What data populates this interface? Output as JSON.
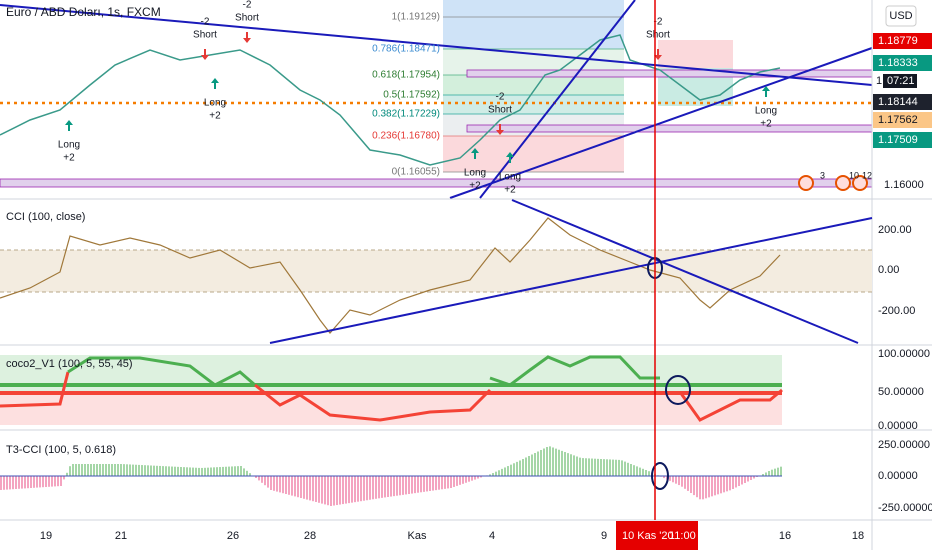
{
  "header": {
    "title": "Euro / ABD Doları, 1s, FXCM",
    "currency": "USD"
  },
  "price_axis": {
    "labels": [
      "1.18779",
      "1.18333",
      "07:21",
      "1.18144",
      "1.17562",
      "1.17509",
      "1.16000"
    ],
    "countdown_prefix": "1"
  },
  "fibonacci": [
    "1(1.19129)",
    "0.786(1.18471)",
    "0.618(1.17954)",
    "0.5(1.17592)",
    "0.382(1.17229)",
    "0.236(1.16780)",
    "0(1.16055)"
  ],
  "signals": [
    {
      "top": "-2",
      "bottom": "Short"
    },
    {
      "top": "-2",
      "bottom": "Short"
    },
    {
      "top": "Long",
      "bottom": "+2"
    },
    {
      "top": "Long",
      "bottom": "+2"
    },
    {
      "top": "-2",
      "bottom": "Short"
    },
    {
      "top": "Long",
      "bottom": "+2"
    },
    {
      "top": "Long",
      "bottom": "+2"
    },
    {
      "top": "-2",
      "bottom": "Short"
    },
    {
      "top": "Long",
      "bottom": "+2"
    }
  ],
  "event_labels": [
    "3",
    "10",
    "12"
  ],
  "panes": [
    {
      "title": "CCI (100, close)",
      "axis": [
        "200.00",
        "0.00",
        "-200.00"
      ]
    },
    {
      "title": "coco2_V1 (100, 5, 55, 45)",
      "axis": [
        "100.00000",
        "50.00000",
        "0.00000"
      ]
    },
    {
      "title": "T3-CCI (100, 5, 0.618)",
      "axis": [
        "250.00000",
        "0.00000",
        "-250.00000"
      ]
    }
  ],
  "time_axis": [
    "19",
    "21",
    "26",
    "28",
    "Kas",
    "4",
    "9",
    "10 Kas '20",
    "11:00",
    "16",
    "18"
  ]
}
